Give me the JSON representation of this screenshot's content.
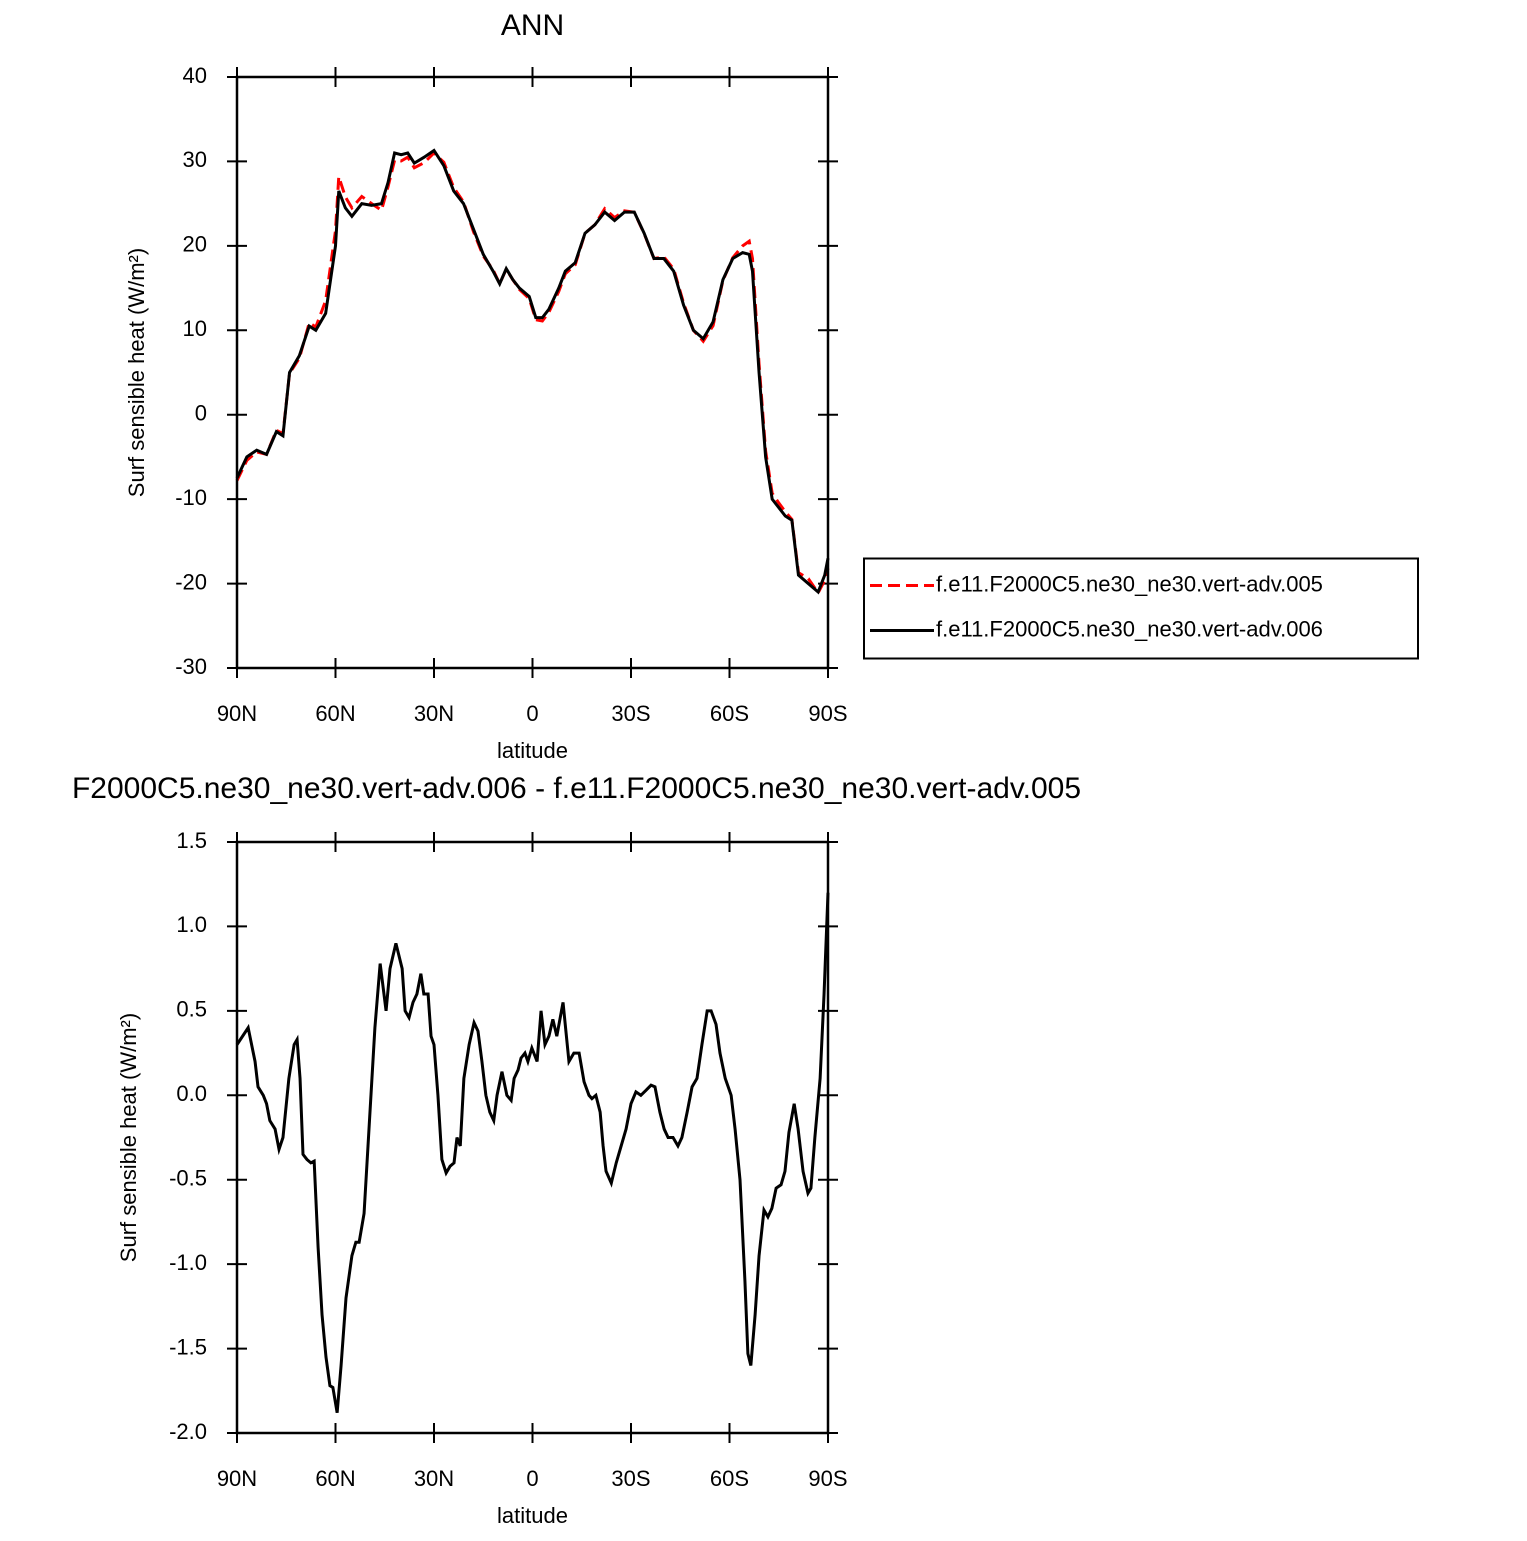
{
  "chart_data": [
    {
      "type": "line",
      "title": "ANN",
      "xlabel": "latitude",
      "ylabel": "Surf sensible heat (W/m²)",
      "x": [
        90,
        87,
        84,
        81,
        78,
        76,
        74,
        71,
        68,
        66,
        63,
        60,
        59,
        57,
        55,
        52,
        49,
        46,
        44,
        42,
        40,
        38,
        36,
        33,
        30,
        27,
        24,
        21,
        18,
        15,
        12,
        10,
        8,
        6,
        4,
        1,
        -1,
        -3,
        -5,
        -8,
        -10,
        -13,
        -16,
        -19,
        -22,
        -25,
        -28,
        -31,
        -34,
        -37,
        -40,
        -43,
        -46,
        -49,
        -52,
        -55,
        -58,
        -61,
        -64,
        -66,
        -67,
        -69,
        -71,
        -73,
        -75,
        -77,
        -79,
        -81,
        -84,
        -87,
        -89,
        -90
      ],
      "series": [
        {
          "name": "f.e11.F2000C5.ne30_ne30.vert-adv.005",
          "color": "#ff0000",
          "linestyle": "dashed",
          "values": [
            -7.8,
            -5.4,
            -4.4,
            -4.7,
            -1.85,
            -2.25,
            4.9,
            6.7,
            10.88,
            10.39,
            13.5,
            21.8,
            28.2,
            25.8,
            24.5,
            25.85,
            25,
            24.22,
            27,
            30.15,
            30.05,
            30.5,
            29.25,
            29.85,
            31,
            29.9,
            26.9,
            25.2,
            21.7,
            18.8,
            17.15,
            15.5,
            17.25,
            16,
            14.85,
            13.75,
            11.25,
            11.1,
            12.15,
            14.6,
            16.7,
            17.75,
            21.5,
            22.5,
            24.4,
            23.35,
            24.15,
            23.98,
            21.45,
            18.5,
            18.7,
            17.25,
            13.25,
            10,
            8.7,
            10.55,
            15.9,
            18.6,
            20,
            20.55,
            18.5,
            6,
            -4.3,
            -9.3,
            -10.45,
            -11.5,
            -12.4,
            -18.7,
            -19.42,
            -21.1,
            -19.6,
            -18.2
          ]
        },
        {
          "name": "f.e11.F2000C5.ne30_ne30.vert-adv.006",
          "color": "#000000",
          "linestyle": "solid",
          "values": [
            -7.5,
            -5,
            -4.2,
            -4.7,
            -2,
            -2.5,
            5,
            7,
            10.5,
            10,
            12,
            20,
            26.5,
            24.5,
            23.5,
            25,
            24.8,
            25,
            27.5,
            31,
            30.8,
            31,
            29.8,
            30.5,
            31.3,
            29.5,
            26.5,
            25,
            22,
            19,
            17,
            15.5,
            17.3,
            16,
            15,
            14,
            11.5,
            11.5,
            12.5,
            15,
            17,
            18,
            21.5,
            22.5,
            24,
            23,
            24,
            24,
            21.5,
            18.5,
            18.5,
            17,
            13,
            10,
            9,
            11,
            16,
            18.5,
            19.2,
            19,
            17,
            5,
            -5,
            -10,
            -11,
            -12,
            -12.5,
            -19,
            -20,
            -21,
            -19,
            -17
          ]
        }
      ],
      "xlim": [
        90,
        -90
      ],
      "xticks": [
        {
          "value": 90,
          "label": "90N"
        },
        {
          "value": 60,
          "label": "60N"
        },
        {
          "value": 30,
          "label": "30N"
        },
        0,
        {
          "value": -30,
          "label": "30S"
        },
        {
          "value": -60,
          "label": "60S"
        },
        {
          "value": -90,
          "label": "90S"
        }
      ],
      "ylim": [
        -30,
        40
      ],
      "yticks": [
        40,
        30,
        20,
        10,
        0,
        -10,
        -20,
        -30
      ],
      "legend": "right"
    },
    {
      "type": "line",
      "title": "F2000C5.ne30_ne30.vert-adv.006 - f.e11.F2000C5.ne30_ne30.vert-adv.005",
      "xlabel": "latitude",
      "ylabel": "Surf sensible heat (W/m²)",
      "x": [
        90,
        86.6,
        84.5,
        83.6,
        82,
        81,
        80,
        78.4,
        77.2,
        76,
        74.2,
        72.6,
        71.7,
        70.8,
        69.9,
        68.7,
        67.5,
        66.5,
        65.3,
        64.1,
        62.9,
        61.7,
        60.8,
        59.5,
        58.3,
        56.8,
        55,
        53.8,
        52.8,
        51.3,
        49.8,
        48,
        46.4,
        44.6,
        43.4,
        41.6,
        39.7,
        38.8,
        37.6,
        36.4,
        35.2,
        34,
        33.1,
        31.8,
        30.9,
        30,
        28.8,
        27.6,
        26.3,
        25.1,
        23.9,
        23,
        22,
        20.9,
        19.3,
        17.8,
        16.6,
        15.4,
        14.2,
        13,
        11.8,
        10.8,
        9.3,
        7.8,
        6.5,
        5.6,
        4.4,
        3.5,
        2.3,
        1.4,
        0.2,
        -1.4,
        -2.6,
        -3.8,
        -5,
        -6.2,
        -7.4,
        -9.3,
        -11.1,
        -12.6,
        -14.2,
        -15.7,
        -17.2,
        -18.1,
        -19.3,
        -20.6,
        -21.5,
        -22.4,
        -24,
        -25.5,
        -27,
        -28.5,
        -30,
        -31.5,
        -33,
        -34.6,
        -36.1,
        -37.3,
        -38.8,
        -40.1,
        -41.3,
        -42.8,
        -44.3,
        -45.5,
        -47.1,
        -48.6,
        -50.1,
        -51.6,
        -53.2,
        -54.4,
        -55.9,
        -57.1,
        -58.7,
        -60.5,
        -61.7,
        -63.2,
        -64.7,
        -65.6,
        -66.5,
        -67.8,
        -69,
        -70.5,
        -71.7,
        -72.9,
        -74.2,
        -75.7,
        -76.9,
        -78.1,
        -79.7,
        -80.9,
        -82.4,
        -83.9,
        -84.8,
        -86,
        -87.6,
        -88.8,
        -90
      ],
      "values": [
        0.3,
        0.4,
        0.2,
        0.05,
        0,
        -0.05,
        -0.15,
        -0.2,
        -0.32,
        -0.25,
        0.1,
        0.3,
        0.33,
        0.1,
        -0.35,
        -0.38,
        -0.4,
        -0.39,
        -0.9,
        -1.3,
        -1.55,
        -1.72,
        -1.73,
        -1.88,
        -1.6,
        -1.2,
        -0.95,
        -0.87,
        -0.87,
        -0.7,
        -0.2,
        0.4,
        0.78,
        0.5,
        0.75,
        0.9,
        0.75,
        0.5,
        0.46,
        0.55,
        0.6,
        0.72,
        0.6,
        0.6,
        0.35,
        0.3,
        0,
        -0.38,
        -0.46,
        -0.42,
        -0.4,
        -0.25,
        -0.3,
        0.1,
        0.3,
        0.43,
        0.38,
        0.2,
        0,
        -0.1,
        -0.15,
        0,
        0.14,
        0,
        -0.03,
        0.1,
        0.15,
        0.22,
        0.25,
        0.2,
        0.28,
        0.2,
        0.5,
        0.3,
        0.35,
        0.45,
        0.35,
        0.55,
        0.2,
        0.25,
        0.25,
        0.08,
        0,
        -0.02,
        0,
        -0.1,
        -0.3,
        -0.45,
        -0.52,
        -0.4,
        -0.3,
        -0.2,
        -0.05,
        0.02,
        0,
        0.03,
        0.06,
        0.05,
        -0.1,
        -0.2,
        -0.25,
        -0.25,
        -0.3,
        -0.25,
        -0.1,
        0.05,
        0.1,
        0.3,
        0.5,
        0.5,
        0.42,
        0.25,
        0.1,
        0,
        -0.2,
        -0.5,
        -1.1,
        -1.53,
        -1.6,
        -1.3,
        -0.95,
        -0.68,
        -0.72,
        -0.67,
        -0.55,
        -0.53,
        -0.45,
        -0.22,
        -0.05,
        -0.2,
        -0.45,
        -0.58,
        -0.55,
        -0.25,
        0.1,
        0.6,
        1.2
      ],
      "color": "#000000",
      "linestyle": "solid",
      "xlim": [
        90,
        -90
      ],
      "xticks": [
        {
          "value": 90,
          "label": "90N"
        },
        {
          "value": 60,
          "label": "60N"
        },
        {
          "value": 30,
          "label": "30N"
        },
        0,
        {
          "value": -30,
          "label": "30S"
        },
        {
          "value": -60,
          "label": "60S"
        },
        {
          "value": -90,
          "label": "90S"
        }
      ],
      "ylim": [
        -2,
        1.5
      ],
      "yticks": [
        1.5,
        {
          "value": 1,
          "label": "1.0"
        },
        0.5,
        {
          "value": 0,
          "label": "0.0"
        },
        -0.5,
        {
          "value": -1,
          "label": "-1.0"
        },
        -1.5,
        {
          "value": -2,
          "label": "-2.0"
        }
      ]
    }
  ]
}
